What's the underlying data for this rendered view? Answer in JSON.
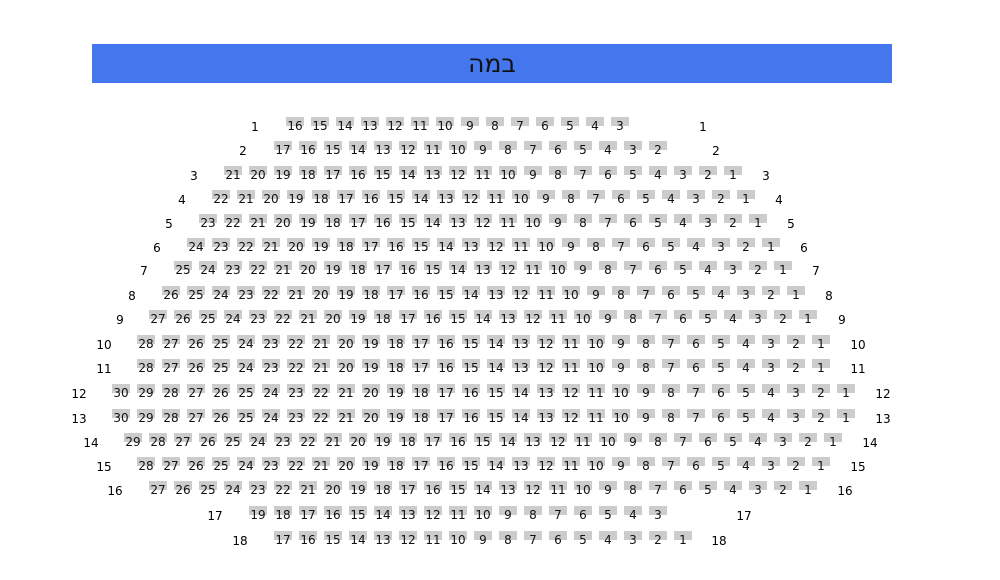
{
  "stage": {
    "label": "במה",
    "color": "#4477ee"
  },
  "seat_color": "#cccccc",
  "rows": [
    {
      "label": "1",
      "seats": [
        16,
        15,
        14,
        13,
        12,
        11,
        10,
        9,
        8,
        7,
        6,
        5,
        4,
        3
      ]
    },
    {
      "label": "2",
      "seats": [
        17,
        16,
        15,
        14,
        13,
        12,
        11,
        10,
        9,
        8,
        7,
        6,
        5,
        4,
        3,
        2
      ]
    },
    {
      "label": "3",
      "seats": [
        21,
        20,
        19,
        18,
        17,
        16,
        15,
        14,
        13,
        12,
        11,
        10,
        9,
        8,
        7,
        6,
        5,
        4,
        3,
        2,
        1
      ]
    },
    {
      "label": "4",
      "seats": [
        22,
        21,
        20,
        19,
        18,
        17,
        16,
        15,
        14,
        13,
        12,
        11,
        10,
        9,
        8,
        7,
        6,
        5,
        4,
        3,
        2,
        1
      ]
    },
    {
      "label": "5",
      "seats": [
        23,
        22,
        21,
        20,
        19,
        18,
        17,
        16,
        15,
        14,
        13,
        12,
        11,
        10,
        9,
        8,
        7,
        6,
        5,
        4,
        3,
        2,
        1
      ]
    },
    {
      "label": "6",
      "seats": [
        24,
        23,
        22,
        21,
        20,
        19,
        18,
        17,
        16,
        15,
        14,
        13,
        12,
        11,
        10,
        9,
        8,
        7,
        6,
        5,
        4,
        3,
        2,
        1
      ]
    },
    {
      "label": "7",
      "seats": [
        25,
        24,
        23,
        22,
        21,
        20,
        19,
        18,
        17,
        16,
        15,
        14,
        13,
        12,
        11,
        10,
        9,
        8,
        7,
        6,
        5,
        4,
        3,
        2,
        1
      ]
    },
    {
      "label": "8",
      "seats": [
        26,
        25,
        24,
        23,
        22,
        21,
        20,
        19,
        18,
        17,
        16,
        15,
        14,
        13,
        12,
        11,
        10,
        9,
        8,
        7,
        6,
        5,
        4,
        3,
        2,
        1
      ]
    },
    {
      "label": "9",
      "seats": [
        27,
        26,
        25,
        24,
        23,
        22,
        21,
        20,
        19,
        18,
        17,
        16,
        15,
        14,
        13,
        12,
        11,
        10,
        9,
        8,
        7,
        6,
        5,
        4,
        3,
        2,
        1
      ]
    },
    {
      "label": "10",
      "seats": [
        28,
        27,
        26,
        25,
        24,
        23,
        22,
        21,
        20,
        19,
        18,
        17,
        16,
        15,
        14,
        13,
        12,
        11,
        10,
        9,
        8,
        7,
        6,
        5,
        4,
        3,
        2,
        1
      ]
    },
    {
      "label": "11",
      "seats": [
        28,
        27,
        26,
        25,
        24,
        23,
        22,
        21,
        20,
        19,
        18,
        17,
        16,
        15,
        14,
        13,
        12,
        11,
        10,
        9,
        8,
        7,
        6,
        5,
        4,
        3,
        2,
        1
      ]
    },
    {
      "label": "12",
      "seats": [
        30,
        29,
        28,
        27,
        26,
        25,
        24,
        23,
        22,
        21,
        20,
        19,
        18,
        17,
        16,
        15,
        14,
        13,
        12,
        11,
        10,
        9,
        8,
        7,
        6,
        5,
        4,
        3,
        2,
        1
      ]
    },
    {
      "label": "13",
      "seats": [
        30,
        29,
        28,
        27,
        26,
        25,
        24,
        23,
        22,
        21,
        20,
        19,
        18,
        17,
        16,
        15,
        14,
        13,
        12,
        11,
        10,
        9,
        8,
        7,
        6,
        5,
        4,
        3,
        2,
        1
      ]
    },
    {
      "label": "14",
      "seats": [
        29,
        28,
        27,
        26,
        25,
        24,
        23,
        22,
        21,
        20,
        19,
        18,
        17,
        16,
        15,
        14,
        13,
        12,
        11,
        10,
        9,
        8,
        7,
        6,
        5,
        4,
        3,
        2,
        1
      ]
    },
    {
      "label": "15",
      "seats": [
        28,
        27,
        26,
        25,
        24,
        23,
        22,
        21,
        20,
        19,
        18,
        17,
        16,
        15,
        14,
        13,
        12,
        11,
        10,
        9,
        8,
        7,
        6,
        5,
        4,
        3,
        2,
        1
      ]
    },
    {
      "label": "16",
      "seats": [
        27,
        26,
        25,
        24,
        23,
        22,
        21,
        20,
        19,
        18,
        17,
        16,
        15,
        14,
        13,
        12,
        11,
        10,
        9,
        8,
        7,
        6,
        5,
        4,
        3,
        2,
        1
      ]
    },
    {
      "label": "17",
      "seats": [
        19,
        18,
        17,
        16,
        15,
        14,
        13,
        12,
        11,
        10,
        9,
        8,
        7,
        6,
        5,
        4,
        3
      ]
    },
    {
      "label": "18",
      "seats": [
        17,
        16,
        15,
        14,
        13,
        12,
        11,
        10,
        9,
        8,
        7,
        6,
        5,
        4,
        3,
        2,
        1
      ]
    }
  ]
}
